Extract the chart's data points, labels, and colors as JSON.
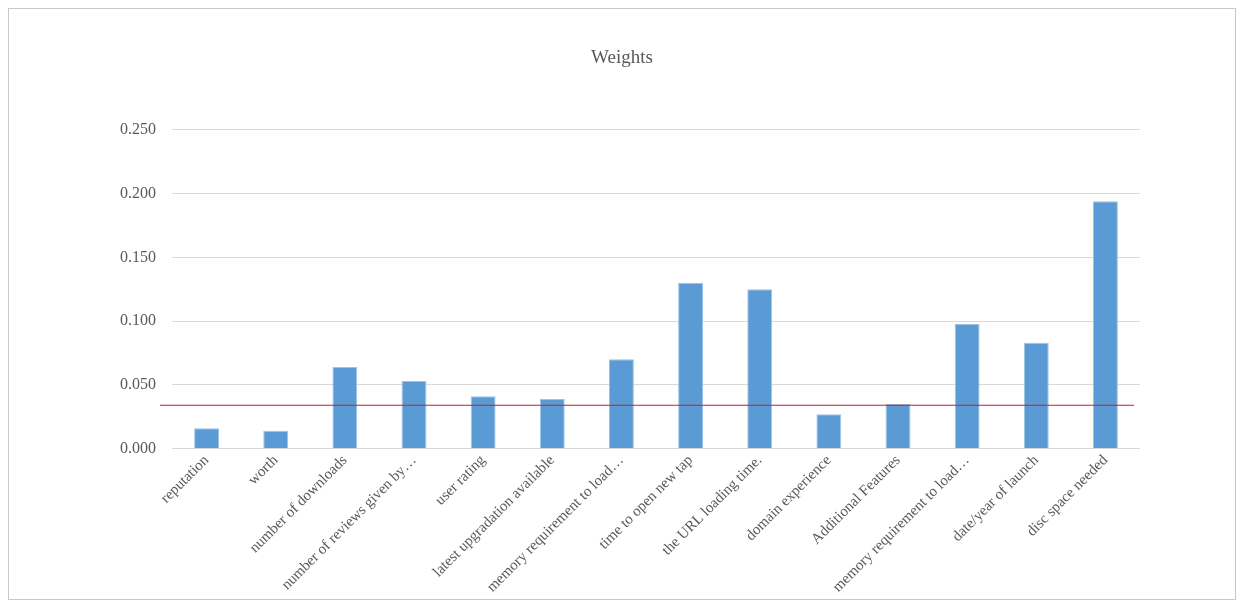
{
  "chart_data": {
    "type": "bar",
    "title": "Weights",
    "categories": [
      "reputation",
      "worth",
      "number of downloads",
      "number of reviews given by…",
      "user rating",
      "latest upgradation available",
      "memory requirement to load…",
      "time to open new tap",
      "the URL loading time.",
      "domain experience",
      "Additional Features",
      "memory requirement to load…",
      "date/year of launch",
      "disc space needed"
    ],
    "values": [
      0.016,
      0.014,
      0.064,
      0.053,
      0.041,
      0.039,
      0.07,
      0.13,
      0.125,
      0.027,
      0.035,
      0.098,
      0.083,
      0.194
    ],
    "color": "#5b9bd5",
    "ylim": [
      0,
      0.25
    ],
    "yticks": [
      {
        "value": 0,
        "label": "0.000"
      },
      {
        "value": 0.05,
        "label": "0.050"
      },
      {
        "value": 0.1,
        "label": "0.100"
      },
      {
        "value": 0.15,
        "label": "0.150"
      },
      {
        "value": 0.2,
        "label": "0.200"
      },
      {
        "value": 0.25,
        "label": "0.250"
      }
    ],
    "grid": "y",
    "legend": false,
    "ref_lines": [
      {
        "axis": "y",
        "value": 0.034,
        "color": "#c0202a"
      }
    ]
  }
}
